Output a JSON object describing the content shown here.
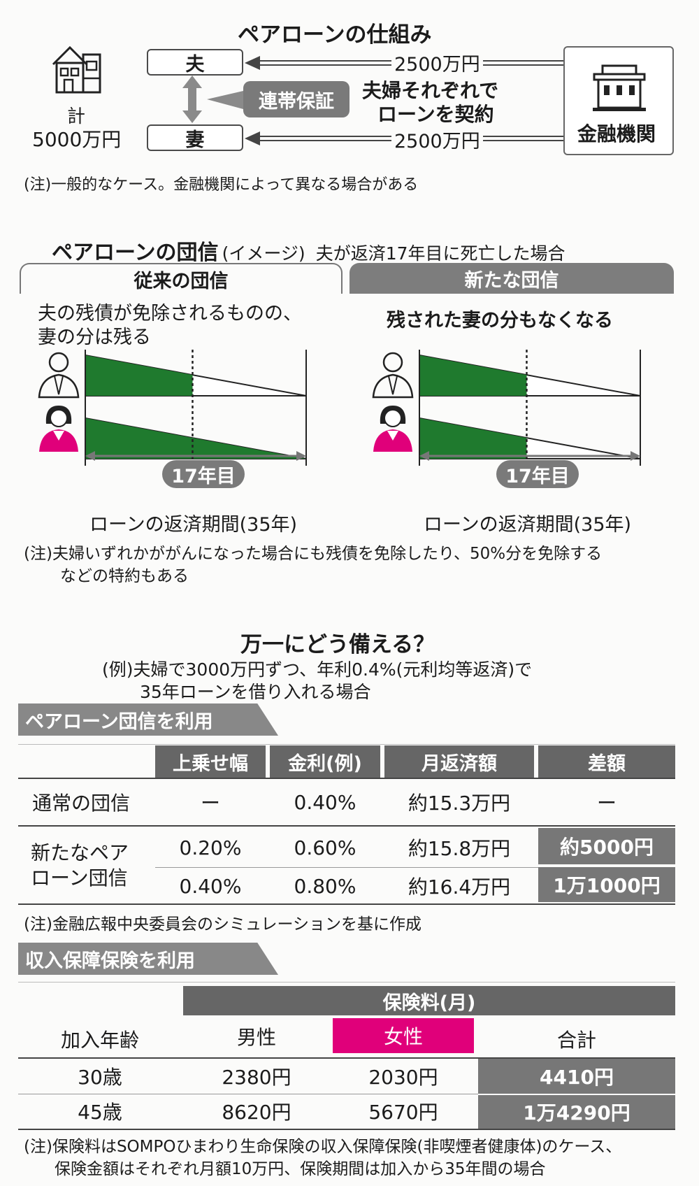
{
  "section1": {
    "title": "ペアローンの仕組み",
    "total_label": "計",
    "total_value": "5000万円",
    "husband": "夫",
    "wife": "妻",
    "guarantee": "連帯保証",
    "contract_line1": "夫婦それぞれで",
    "contract_line2": "ローンを契約",
    "amount_husband": "2500万円",
    "amount_wife": "2500万円",
    "bank": "金融機関",
    "note": "(注)一般的なケース。金融機関によって異なる場合がある"
  },
  "section2": {
    "title": "ペアローンの団信",
    "title_sub": "(イメージ)",
    "scenario": "夫が返済17年目に死亡した場合",
    "left": {
      "header": "従来の団信",
      "desc_line1": "夫の残債が免除されるものの、",
      "desc_line2": "妻の分は残る",
      "year_badge": "17年目",
      "period": "ローンの返済期間(35年)"
    },
    "right": {
      "header": "新たな団信",
      "desc": "残された妻の分もなくなる",
      "year_badge": "17年目",
      "period": "ローンの返済期間(35年)"
    },
    "note_line1": "(注)夫婦いずれかががんになった場合にも残債を免除したり、50%分を免除する",
    "note_line2": "などの特約もある",
    "colors": {
      "balance_fill": "#1f7a2e",
      "wife_icon": "#e0007a"
    },
    "chart_data": {
      "type": "area",
      "x": [
        0,
        17,
        35
      ],
      "xlabel": "ローンの返済期間(35年)",
      "death_year": 17,
      "total_years": 35
    }
  },
  "section3": {
    "title": "万一にどう備える？",
    "example_line1": "(例)夫婦で3000万円ずつ、年利0.4%(元利均等返済)で",
    "example_line2": "35年ローンを借り入れる場合",
    "table1": {
      "heading": "ペアローン団信を利用",
      "headers": [
        "上乗せ幅",
        "金利(例)",
        "月返済額",
        "差額"
      ],
      "row_normal": {
        "label": "通常の団信",
        "cells": [
          "ー",
          "0.40%",
          "約15.3万円",
          "ー"
        ]
      },
      "row_new_label_line1": "新たなペア",
      "row_new_label_line2": "ローン団信",
      "rows_new": [
        {
          "cells": [
            "0.20%",
            "0.60%",
            "約15.8万円",
            "約5000円"
          ]
        },
        {
          "cells": [
            "0.40%",
            "0.80%",
            "約16.4万円",
            "1万1000円"
          ]
        }
      ],
      "note": "(注)金融広報中央委員会のシミュレーションを基に作成"
    },
    "table2": {
      "heading": "収入保障保険を利用",
      "group_header": "保険料(月)",
      "headers": [
        "加入年齢",
        "男性",
        "女性",
        "合計"
      ],
      "rows": [
        {
          "cells": [
            "30歳",
            "2380円",
            "2030円",
            "4410円"
          ]
        },
        {
          "cells": [
            "45歳",
            "8620円",
            "5670円",
            "1万4290円"
          ]
        }
      ],
      "note_line1": "(注)保険料はSOMPOひまわり生命保険の収入保障保険(非喫煙者健康体)のケース、",
      "note_line2": "保険金額はそれぞれ月額10万円、保険期間は加入から35年間の場合",
      "female_color": "#e0007a"
    }
  }
}
